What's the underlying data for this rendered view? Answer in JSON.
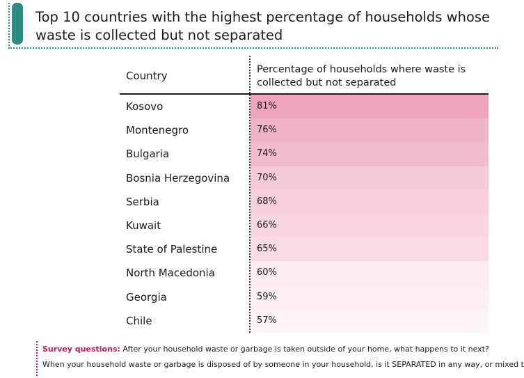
{
  "title": "Top 10 countries with the highest percentage of households whose waste is collected but not separated",
  "colors": {
    "accent": "#2a8c82",
    "bar_strong": "#e57ca0",
    "footnote_label": "#c2185b"
  },
  "chart_data": {
    "type": "table",
    "title": "Top 10 countries with the highest percentage of households whose waste is collected but not separated",
    "columns": [
      "Country",
      "Percentage of households where waste is collected but not separated"
    ],
    "categories": [
      "Kosovo",
      "Montenegro",
      "Bulgaria",
      "Bosnia Herzegovina",
      "Serbia",
      "Kuwait",
      "State of Palestine",
      "North Macedonia",
      "Georgia",
      "Chile"
    ],
    "values": [
      81,
      76,
      74,
      70,
      68,
      66,
      65,
      60,
      59,
      57
    ],
    "value_labels": [
      "81%",
      "76%",
      "74%",
      "70%",
      "68%",
      "66%",
      "65%",
      "60%",
      "59%",
      "57%"
    ],
    "unit": "%"
  },
  "footnote": {
    "label": "Survey questions:",
    "line1": "After your household waste or garbage is taken outside of your home, what happens to it next?",
    "line2": "When your household waste or garbage is disposed of by someone in your household, is it SEPARATED in any way, or mixed together?"
  }
}
